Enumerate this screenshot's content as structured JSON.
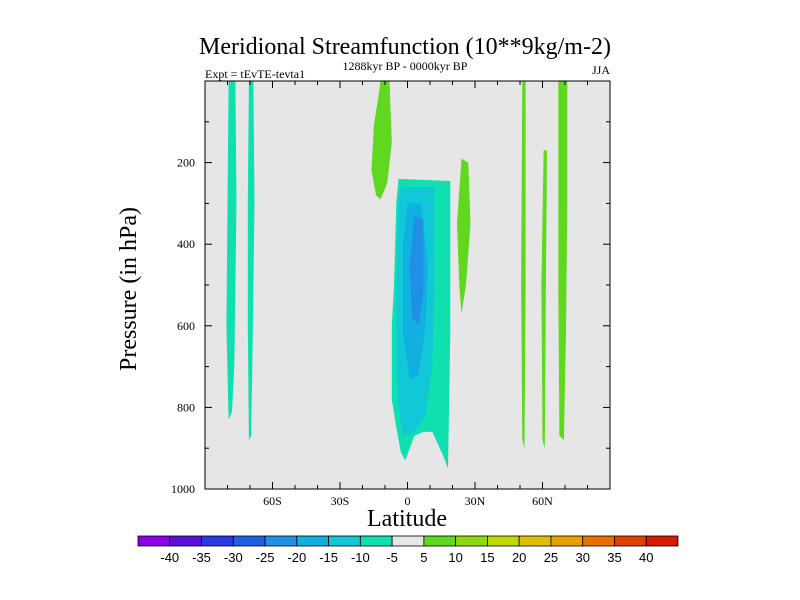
{
  "chart_data": {
    "type": "contour",
    "title": "Meridional Streamfunction (10**9kg/m-2)",
    "subtitle_left": "Expt = tEvTE-tevta1",
    "subtitle_center": "1288kyr BP - 0000kyr BP",
    "subtitle_right": "JJA",
    "xlabel": "Latitude",
    "ylabel": "Pressure (in hPa)",
    "xlim": [
      -90,
      90
    ],
    "ylim": [
      0,
      1000
    ],
    "x_ticks": [
      {
        "value": -60,
        "label": "60S"
      },
      {
        "value": -30,
        "label": "30S"
      },
      {
        "value": 0,
        "label": "0"
      },
      {
        "value": 30,
        "label": "30N"
      },
      {
        "value": 60,
        "label": "60N"
      }
    ],
    "y_ticks": [
      {
        "value": 200,
        "label": "200"
      },
      {
        "value": 400,
        "label": "400"
      },
      {
        "value": 600,
        "label": "600"
      },
      {
        "value": 800,
        "label": "800"
      },
      {
        "value": 1000,
        "label": "1000"
      }
    ],
    "background_color": "#e6e6e6",
    "colorbar": {
      "labels": [
        "-40",
        "-35",
        "-30",
        "-25",
        "-20",
        "-15",
        "-10",
        "-5",
        "5",
        "10",
        "15",
        "20",
        "25",
        "30",
        "35",
        "40"
      ],
      "colors": [
        "#8d00e6",
        "#5a10d6",
        "#2a3ae0",
        "#2060e0",
        "#2090e6",
        "#10b0e0",
        "#10c8d8",
        "#10e0b0",
        "#e6e6e6",
        "#60d820",
        "#90d810",
        "#c0d800",
        "#e0c000",
        "#e8a000",
        "#e87000",
        "#e04000",
        "#d81800"
      ]
    },
    "regions": [
      {
        "level": -5,
        "color": "#10e0b0",
        "points": [
          [
            -79.5,
            0
          ],
          [
            -76.5,
            0
          ],
          [
            -76,
            300
          ],
          [
            -77,
            700
          ],
          [
            -78,
            810
          ],
          [
            -79.5,
            830
          ],
          [
            -80.5,
            600
          ],
          [
            -80,
            300
          ]
        ]
      },
      {
        "level": -5,
        "color": "#10e0b0",
        "points": [
          [
            -70.5,
            0
          ],
          [
            -68.5,
            0
          ],
          [
            -68,
            300
          ],
          [
            -69,
            700
          ],
          [
            -69.5,
            870
          ],
          [
            -70.5,
            880
          ],
          [
            -71,
            600
          ],
          [
            -71,
            300
          ]
        ]
      },
      {
        "level": 5,
        "color": "#60d820",
        "points": [
          [
            -12,
            0
          ],
          [
            -8,
            0
          ],
          [
            -7,
            150
          ],
          [
            -9,
            250
          ],
          [
            -12,
            290
          ],
          [
            -14,
            280
          ],
          [
            -16,
            220
          ],
          [
            -15,
            110
          ],
          [
            -13,
            40
          ]
        ]
      },
      {
        "level": -5,
        "color": "#10e0b0",
        "points": [
          [
            -4,
            240
          ],
          [
            19,
            245
          ],
          [
            19,
            620
          ],
          [
            18,
            950
          ],
          [
            16,
            920
          ],
          [
            11,
            860
          ],
          [
            7,
            860
          ],
          [
            3,
            870
          ],
          [
            -1,
            930
          ],
          [
            -3,
            910
          ],
          [
            -5,
            850
          ],
          [
            -7,
            780
          ],
          [
            -7,
            600
          ],
          [
            -6,
            500
          ],
          [
            -5,
            300
          ]
        ]
      },
      {
        "level": -10,
        "color": "#10c8d8",
        "points": [
          [
            -3,
            260
          ],
          [
            12,
            260
          ],
          [
            12,
            500
          ],
          [
            11,
            700
          ],
          [
            8,
            820
          ],
          [
            3,
            860
          ],
          [
            -2,
            870
          ],
          [
            -4,
            800
          ],
          [
            -5,
            700
          ],
          [
            -5,
            500
          ],
          [
            -4,
            300
          ]
        ]
      },
      {
        "level": -15,
        "color": "#10b0e0",
        "points": [
          [
            0,
            300
          ],
          [
            6,
            300
          ],
          [
            9,
            450
          ],
          [
            8,
            600
          ],
          [
            5,
            720
          ],
          [
            1,
            730
          ],
          [
            -2,
            620
          ],
          [
            -2,
            400
          ]
        ]
      },
      {
        "level": -20,
        "color": "#2090e6",
        "points": [
          [
            3,
            330
          ],
          [
            7,
            340
          ],
          [
            7,
            520
          ],
          [
            5,
            600
          ],
          [
            2,
            580
          ],
          [
            1,
            450
          ]
        ]
      },
      {
        "level": 5,
        "color": "#60d820",
        "points": [
          [
            24,
            190
          ],
          [
            27,
            200
          ],
          [
            28,
            350
          ],
          [
            26,
            500
          ],
          [
            24,
            570
          ],
          [
            23,
            500
          ],
          [
            22,
            350
          ]
        ]
      },
      {
        "level": 5,
        "color": "#60d820",
        "points": [
          [
            51,
            0
          ],
          [
            52.5,
            0
          ],
          [
            52.5,
            500
          ],
          [
            52,
            900
          ],
          [
            51,
            880
          ],
          [
            50.5,
            500
          ]
        ]
      },
      {
        "level": 5,
        "color": "#60d820",
        "points": [
          [
            60.5,
            170
          ],
          [
            62,
            170
          ],
          [
            61.5,
            500
          ],
          [
            61,
            900
          ],
          [
            60,
            880
          ],
          [
            59.5,
            500
          ]
        ]
      },
      {
        "level": 5,
        "color": "#60d820",
        "points": [
          [
            67,
            0
          ],
          [
            71,
            0
          ],
          [
            71,
            300
          ],
          [
            70.5,
            600
          ],
          [
            69.5,
            880
          ],
          [
            67.5,
            870
          ],
          [
            67,
            500
          ],
          [
            67,
            200
          ]
        ]
      }
    ]
  }
}
